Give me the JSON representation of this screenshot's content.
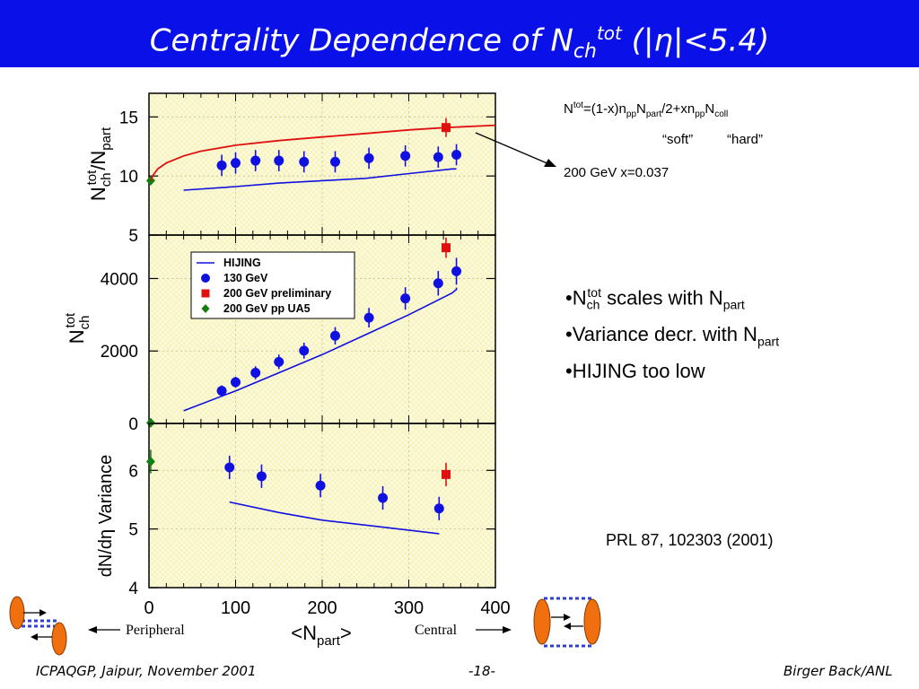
{
  "title": {
    "main": "Centrality Dependence of N",
    "sub": "ch",
    "sup": "tot",
    "tail": " (|η|<5.4)"
  },
  "formula": {
    "n": "N",
    "tot": "tot",
    "eq": "=(1-x)n",
    "pp1": "pp",
    "n2": "N",
    "part": "part",
    "mid": "/2+xn",
    "pp2": "pp",
    "n3": "N",
    "coll": "coll",
    "soft": "“soft”",
    "hard": "“hard”",
    "energy": "200 GeV x=0.037"
  },
  "bullets": {
    "b1": {
      "pre": "•N",
      "sub": "ch",
      "sup": "tot",
      "mid": " scales with N",
      "sub2": "part"
    },
    "b2": {
      "pre": "•Variance decr. with N",
      "sub": "part"
    },
    "b3": {
      "pre": "•HIJING too low"
    }
  },
  "reference": "PRL 87, 102303 (2001)",
  "peripheral_label": "Peripheral",
  "central_label": "Central",
  "footer": {
    "left": "ICPAQGP, Jaipur, November 2001",
    "center": "-18-",
    "right": "Birger Back/ANL"
  },
  "colors": {
    "title_bg": "#0a10e8",
    "plot_bg": "#f8f4c0",
    "data130": "#1010e0",
    "data200": "#e01010",
    "ua5": "#108010",
    "fit": "#e01010",
    "hijing": "#1010e0"
  },
  "chart_data": [
    {
      "type": "scatter",
      "ylabel": "Ntot ch/Npart",
      "xlim": [
        0,
        400
      ],
      "ylim": [
        5,
        17
      ],
      "yticks": [
        5,
        10,
        15
      ],
      "series": [
        {
          "name": "130 GeV",
          "x": [
            84,
            100,
            123,
            150,
            179,
            215,
            254,
            296,
            334,
            355
          ],
          "y": [
            10.9,
            11.1,
            11.3,
            11.3,
            11.2,
            11.2,
            11.5,
            11.7,
            11.6,
            11.8
          ],
          "err": [
            0.9,
            0.9,
            0.9,
            0.9,
            0.9,
            0.9,
            0.9,
            0.9,
            0.9,
            0.9
          ]
        },
        {
          "name": "200 GeV preliminary",
          "x": [
            343
          ],
          "y": [
            14.1
          ],
          "err": [
            0.8
          ]
        },
        {
          "name": "200 GeV pp UA5",
          "x": [
            2
          ],
          "y": [
            9.6
          ],
          "err": [
            0.2
          ]
        },
        {
          "name": "HIJING",
          "x": [
            40,
            100,
            150,
            200,
            250,
            300,
            350,
            355
          ],
          "y": [
            8.8,
            9.1,
            9.4,
            9.6,
            9.8,
            10.2,
            10.6,
            10.6
          ]
        },
        {
          "name": "fit",
          "x": [
            2,
            5,
            10,
            20,
            40,
            60,
            100,
            150,
            200,
            250,
            300,
            343,
            400
          ],
          "y": [
            9.6,
            10.1,
            10.6,
            11.1,
            11.7,
            12.1,
            12.6,
            13.0,
            13.3,
            13.6,
            13.9,
            14.1,
            14.3
          ]
        }
      ]
    },
    {
      "type": "scatter",
      "ylabel": "Ntot ch",
      "xlim": [
        0,
        400
      ],
      "ylim": [
        0,
        5200
      ],
      "yticks": [
        0,
        2000,
        4000
      ],
      "legend": [
        "HIJING",
        "130 GeV",
        "200 GeV preliminary",
        "200 GeV pp UA5"
      ],
      "legend_position": "upper-left",
      "series": [
        {
          "name": "130 GeV",
          "x": [
            84,
            100,
            123,
            150,
            179,
            215,
            254,
            296,
            334,
            355
          ],
          "y": [
            900,
            1140,
            1400,
            1700,
            2010,
            2420,
            2920,
            3450,
            3870,
            4200
          ],
          "err": [
            150,
            150,
            180,
            200,
            220,
            240,
            270,
            310,
            340,
            370
          ]
        },
        {
          "name": "200 GeV preliminary",
          "x": [
            343
          ],
          "y": [
            4850
          ],
          "err": [
            280
          ]
        },
        {
          "name": "200 GeV pp UA5",
          "x": [
            2
          ],
          "y": [
            20
          ],
          "err": [
            10
          ]
        },
        {
          "name": "HIJING",
          "x": [
            40,
            100,
            150,
            200,
            250,
            300,
            350,
            355,
            355
          ],
          "y": [
            350,
            900,
            1400,
            1900,
            2450,
            3000,
            3600,
            3700,
            3750
          ]
        }
      ]
    },
    {
      "type": "scatter",
      "ylabel": "dN/dη Variance",
      "xlabel": "<Npart>",
      "xlim": [
        0,
        400
      ],
      "ylim": [
        4,
        6.8
      ],
      "xticks": [
        0,
        100,
        200,
        300,
        400
      ],
      "yticks": [
        4,
        5,
        6
      ],
      "series": [
        {
          "name": "130 GeV",
          "x": [
            93,
            130,
            198,
            270,
            335
          ],
          "y": [
            6.05,
            5.9,
            5.74,
            5.53,
            5.35
          ],
          "err": [
            0.2,
            0.2,
            0.2,
            0.2,
            0.2
          ]
        },
        {
          "name": "200 GeV preliminary",
          "x": [
            343
          ],
          "y": [
            5.93
          ],
          "err": [
            0.2
          ]
        },
        {
          "name": "200 GeV pp UA5",
          "x": [
            2
          ],
          "y": [
            6.15
          ],
          "err": [
            0.2
          ]
        },
        {
          "name": "HIJING",
          "x": [
            93,
            150,
            200,
            260,
            335
          ],
          "y": [
            5.46,
            5.28,
            5.15,
            5.05,
            4.92
          ]
        }
      ]
    }
  ]
}
